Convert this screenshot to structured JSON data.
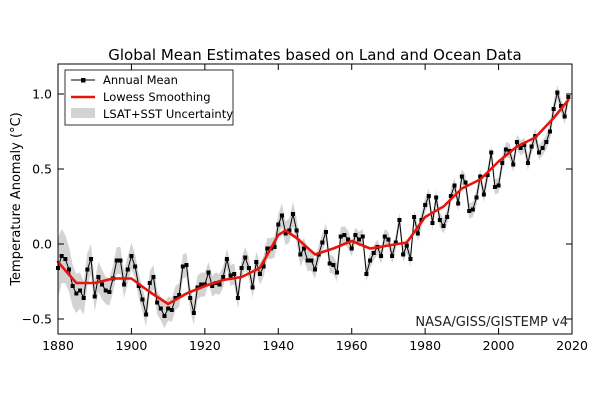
{
  "chart_data": {
    "type": "line",
    "title": "Global Mean Estimates based on Land and Ocean Data",
    "xlabel": "",
    "ylabel": "Temperature Anomaly (°C)",
    "xlim": [
      1880,
      2020
    ],
    "ylim": [
      -0.6,
      1.2
    ],
    "x_ticks": [
      1880,
      1900,
      1920,
      1940,
      1960,
      1980,
      2000,
      2020
    ],
    "y_ticks": [
      -0.5,
      0.0,
      0.5,
      1.0
    ],
    "y_tick_labels": [
      "−0.5",
      "0.0",
      "0.5",
      "1.0"
    ],
    "grid": false,
    "legend_position": "top-left",
    "credit": "NASA/GISS/GISTEMP v4",
    "colors": {
      "annual": "#000000",
      "smooth": "#e8150d",
      "uncertainty": "#d3d3d3"
    },
    "series": [
      {
        "name": "Annual Mean",
        "marker": "square",
        "x": [
          1880,
          1881,
          1882,
          1883,
          1884,
          1885,
          1886,
          1887,
          1888,
          1889,
          1890,
          1891,
          1892,
          1893,
          1894,
          1895,
          1896,
          1897,
          1898,
          1899,
          1900,
          1901,
          1902,
          1903,
          1904,
          1905,
          1906,
          1907,
          1908,
          1909,
          1910,
          1911,
          1912,
          1913,
          1914,
          1915,
          1916,
          1917,
          1918,
          1919,
          1920,
          1921,
          1922,
          1923,
          1924,
          1925,
          1926,
          1927,
          1928,
          1929,
          1930,
          1931,
          1932,
          1933,
          1934,
          1935,
          1936,
          1937,
          1938,
          1939,
          1940,
          1941,
          1942,
          1943,
          1944,
          1945,
          1946,
          1947,
          1948,
          1949,
          1950,
          1951,
          1952,
          1953,
          1954,
          1955,
          1956,
          1957,
          1958,
          1959,
          1960,
          1961,
          1962,
          1963,
          1964,
          1965,
          1966,
          1967,
          1968,
          1969,
          1970,
          1971,
          1972,
          1973,
          1974,
          1975,
          1976,
          1977,
          1978,
          1979,
          1980,
          1981,
          1982,
          1983,
          1984,
          1985,
          1986,
          1987,
          1988,
          1989,
          1990,
          1991,
          1992,
          1993,
          1994,
          1995,
          1996,
          1997,
          1998,
          1999,
          2000,
          2001,
          2002,
          2003,
          2004,
          2005,
          2006,
          2007,
          2008,
          2009,
          2010,
          2011,
          2012,
          2013,
          2014,
          2015,
          2016,
          2017,
          2018,
          2019
        ],
        "values": [
          -0.16,
          -0.08,
          -0.1,
          -0.17,
          -0.28,
          -0.33,
          -0.31,
          -0.36,
          -0.17,
          -0.1,
          -0.35,
          -0.22,
          -0.27,
          -0.31,
          -0.32,
          -0.23,
          -0.11,
          -0.11,
          -0.27,
          -0.17,
          -0.08,
          -0.15,
          -0.28,
          -0.37,
          -0.47,
          -0.26,
          -0.22,
          -0.39,
          -0.43,
          -0.48,
          -0.43,
          -0.44,
          -0.36,
          -0.34,
          -0.15,
          -0.14,
          -0.36,
          -0.46,
          -0.29,
          -0.27,
          -0.27,
          -0.19,
          -0.28,
          -0.26,
          -0.27,
          -0.22,
          -0.1,
          -0.21,
          -0.2,
          -0.36,
          -0.16,
          -0.09,
          -0.16,
          -0.29,
          -0.12,
          -0.2,
          -0.15,
          -0.03,
          -0.03,
          -0.02,
          0.13,
          0.19,
          0.07,
          0.09,
          0.2,
          0.09,
          -0.07,
          -0.03,
          -0.11,
          -0.11,
          -0.17,
          -0.07,
          0.01,
          0.08,
          -0.13,
          -0.14,
          -0.19,
          0.05,
          0.06,
          0.03,
          -0.03,
          0.06,
          0.03,
          0.05,
          -0.2,
          -0.11,
          -0.06,
          -0.02,
          -0.08,
          0.05,
          0.03,
          -0.08,
          0.01,
          0.16,
          -0.07,
          -0.01,
          -0.1,
          0.18,
          0.07,
          0.16,
          0.26,
          0.32,
          0.14,
          0.31,
          0.16,
          0.12,
          0.18,
          0.32,
          0.39,
          0.27,
          0.45,
          0.41,
          0.22,
          0.23,
          0.31,
          0.45,
          0.33,
          0.46,
          0.61,
          0.38,
          0.39,
          0.54,
          0.63,
          0.62,
          0.53,
          0.68,
          0.64,
          0.66,
          0.54,
          0.65,
          0.72,
          0.61,
          0.64,
          0.68,
          0.75,
          0.9,
          1.01,
          0.92,
          0.85,
          0.98
        ]
      },
      {
        "name": "Lowess Smoothing",
        "x": [
          1880,
          1885,
          1890,
          1895,
          1900,
          1905,
          1910,
          1915,
          1920,
          1925,
          1930,
          1935,
          1940,
          1942,
          1945,
          1950,
          1955,
          1960,
          1965,
          1970,
          1975,
          1980,
          1985,
          1990,
          1995,
          2000,
          2005,
          2010,
          2015,
          2019
        ],
        "values": [
          -0.12,
          -0.26,
          -0.26,
          -0.23,
          -0.23,
          -0.32,
          -0.4,
          -0.33,
          -0.28,
          -0.24,
          -0.22,
          -0.16,
          0.06,
          0.09,
          0.04,
          -0.07,
          -0.03,
          0.02,
          -0.03,
          -0.01,
          0.01,
          0.18,
          0.25,
          0.37,
          0.43,
          0.55,
          0.65,
          0.71,
          0.84,
          0.96
        ]
      }
    ],
    "uncertainty": {
      "name": "LSAT+SST Uncertainty",
      "half_width": [
        0.2,
        0.18,
        0.16,
        0.15,
        0.14,
        0.13,
        0.12,
        0.11,
        0.11,
        0.1,
        0.1,
        0.1,
        0.1,
        0.09,
        0.09,
        0.09,
        0.09,
        0.09,
        0.09,
        0.09,
        0.09,
        0.08,
        0.08,
        0.08,
        0.08,
        0.08,
        0.08,
        0.08,
        0.08,
        0.08,
        0.08,
        0.08,
        0.08,
        0.08,
        0.08,
        0.08,
        0.08,
        0.08,
        0.08,
        0.08,
        0.08,
        0.07,
        0.07,
        0.07,
        0.07,
        0.07,
        0.07,
        0.07,
        0.07,
        0.07,
        0.07,
        0.07,
        0.07,
        0.07,
        0.07,
        0.07,
        0.07,
        0.07,
        0.07,
        0.07,
        0.07,
        0.08,
        0.08,
        0.08,
        0.08,
        0.08,
        0.08,
        0.07,
        0.07,
        0.07,
        0.06,
        0.06,
        0.06,
        0.06,
        0.06,
        0.06,
        0.06,
        0.06,
        0.06,
        0.06,
        0.05,
        0.05,
        0.05,
        0.05,
        0.05,
        0.05,
        0.05,
        0.05,
        0.05,
        0.05,
        0.05,
        0.05,
        0.05,
        0.05,
        0.05,
        0.05,
        0.05,
        0.05,
        0.05,
        0.05,
        0.05,
        0.05,
        0.05,
        0.05,
        0.05,
        0.05,
        0.05,
        0.05,
        0.05,
        0.05,
        0.05,
        0.05,
        0.05,
        0.05,
        0.05,
        0.05,
        0.05,
        0.05,
        0.05,
        0.05,
        0.05,
        0.05,
        0.05,
        0.05,
        0.05,
        0.05,
        0.05,
        0.05,
        0.05,
        0.05,
        0.05,
        0.05,
        0.05,
        0.05,
        0.05,
        0.05,
        0.05,
        0.05,
        0.05,
        0.05
      ]
    }
  }
}
